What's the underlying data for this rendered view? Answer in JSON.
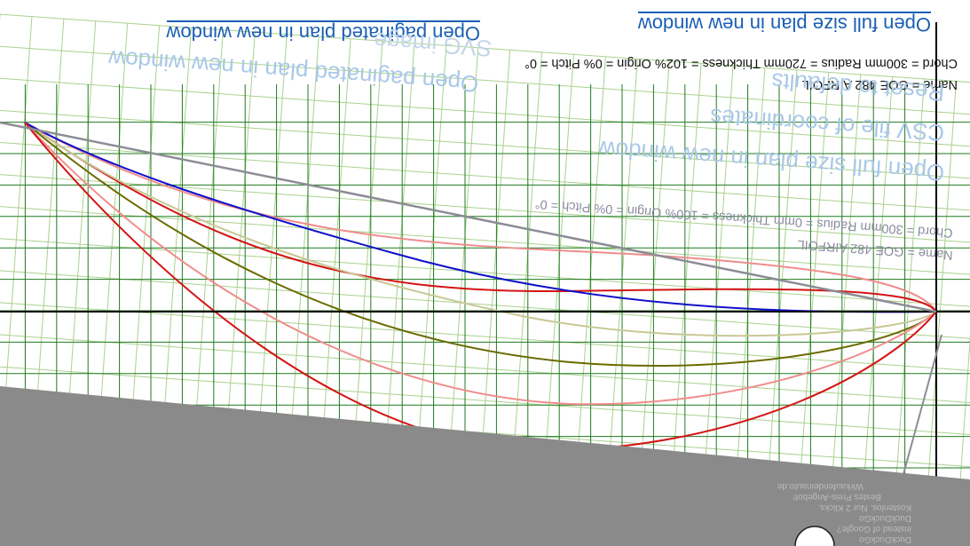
{
  "links": {
    "open_full_size": "Open full size plan in new window",
    "open_paginated": "Open paginated plan in new window",
    "csv_file": "CSV file of coordinates",
    "reset": "Reset to defaults",
    "svg_image": "SVG image"
  },
  "airfoil_info": {
    "name_line": "Name = GOE 482 AIRFOIL",
    "params_line": "Chord = 300mm Radius = 720mm Thickness = 102% Origin = 0% Pitch = 0°"
  },
  "ghost_page": {
    "open_full_size": "Open full size plan in new window",
    "open_paginated": "Open paginated plan in new window",
    "svg_image": "SVG image",
    "csv_file": "CSV file of coordinates",
    "reset": "Reset to defaults",
    "name_line": "Name = GOE 482 AIRFOIL",
    "params_line": "Chord = 300mm Radius = 0mm Thickness = 100% Origin = 0% Pitch = 0°"
  },
  "ad_panel": {
    "line1": "DuckDuckGo",
    "line2": "instead of Google?",
    "line3": "DuckDuckGo",
    "line4": "Kostenlos. Nur 2 Klicks.",
    "line5": "Bestes Preis-Angebot!",
    "line6": "Wirkaufendeinauto.de"
  },
  "colors": {
    "grid_green": "#1f7a1f",
    "light_green": "#a9d18e",
    "blue_curve": "#1010c8",
    "red_curve": "#d41414",
    "pink_curve": "#f08c8c",
    "tan_curve": "#c8c896",
    "olive_curve": "#6b6b00",
    "gray_line": "#8c8c96",
    "link_blue": "#1a5fb4",
    "overlay_gray": "#8a8a8a"
  }
}
